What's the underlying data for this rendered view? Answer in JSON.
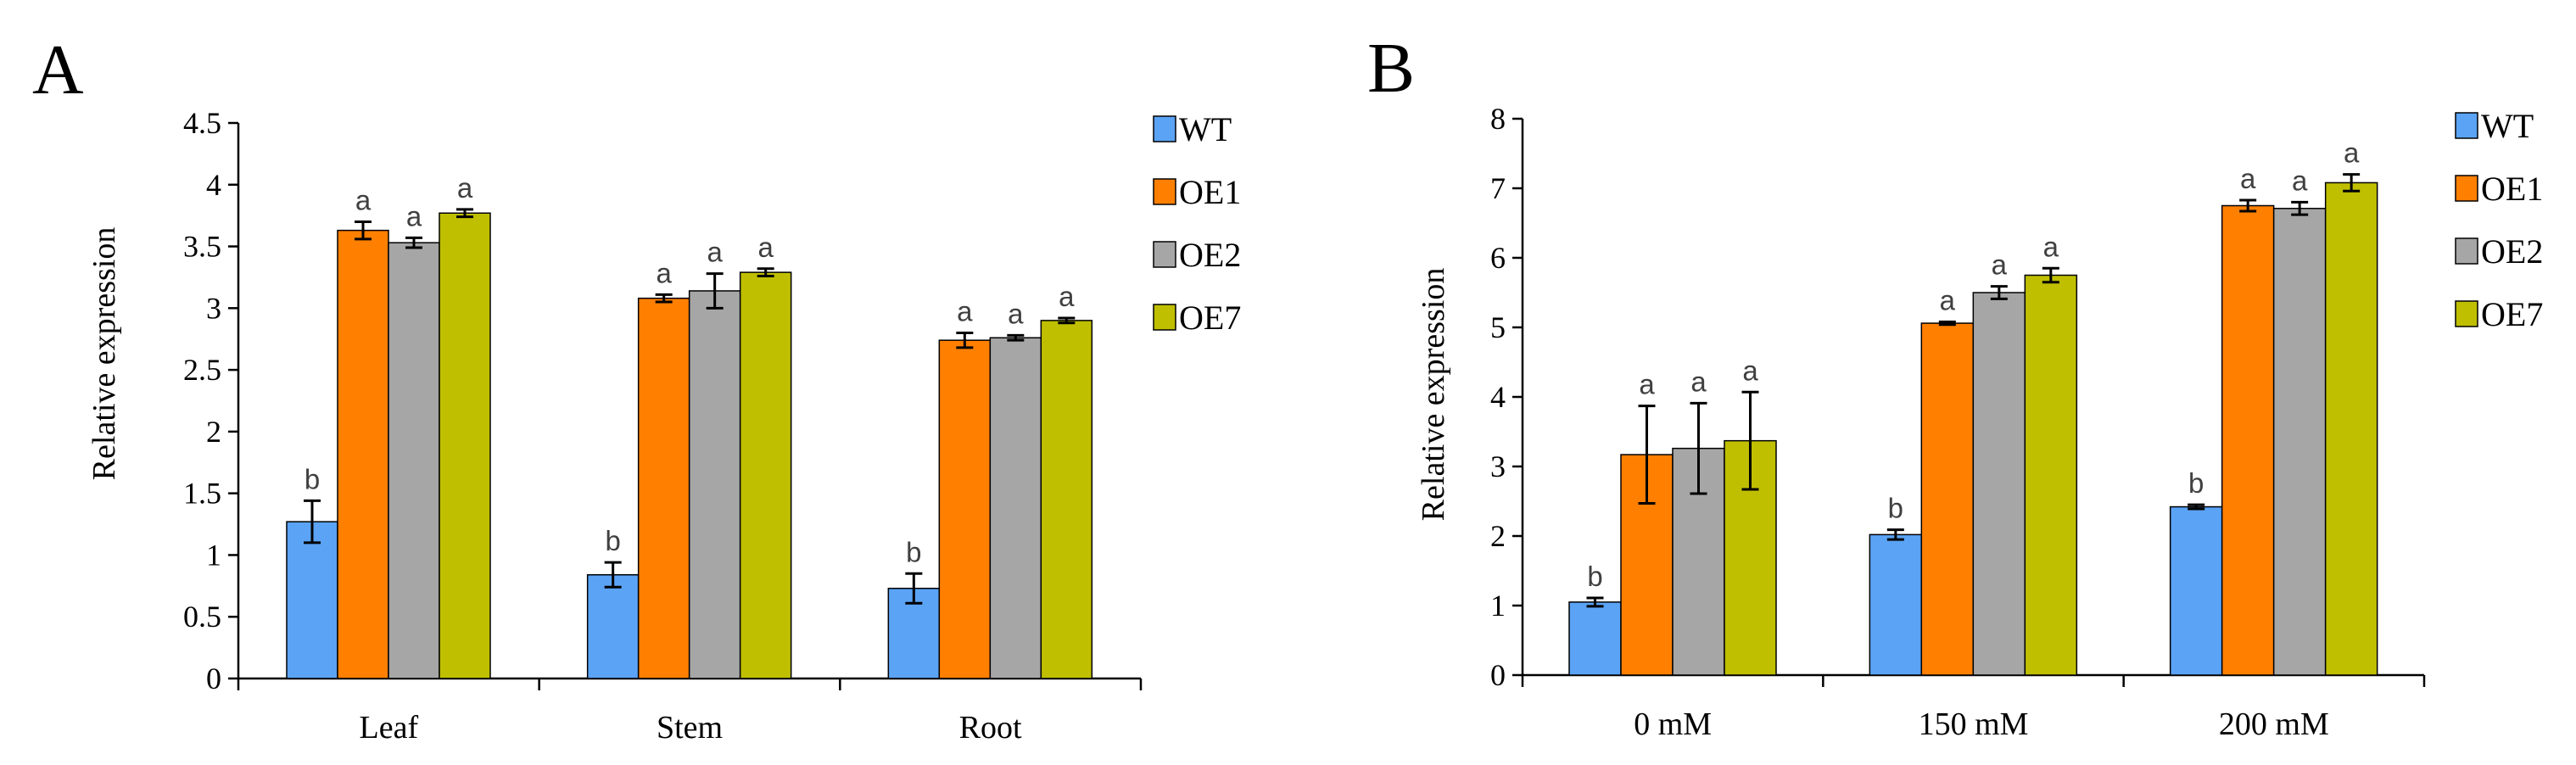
{
  "chart_data": [
    {
      "panel": "A",
      "type": "bar",
      "categories": [
        "Leaf",
        "Stem",
        "Root"
      ],
      "ylabel": "Relative expression",
      "ylim": [
        0,
        4.5
      ],
      "yticks": [
        "0",
        "0.5",
        "1",
        "1.5",
        "2",
        "2.5",
        "3",
        "3.5",
        "4",
        "4.5"
      ],
      "ytick_values": [
        0,
        0.5,
        1,
        1.5,
        2,
        2.5,
        3,
        3.5,
        4,
        4.5
      ],
      "legend_position": "right",
      "grid": false,
      "series": [
        {
          "name": "WT",
          "color": "#5BA3F5",
          "values": [
            1.27,
            0.84,
            0.73
          ],
          "errors": [
            0.17,
            0.1,
            0.12
          ],
          "labels": [
            "b",
            "b",
            "b"
          ]
        },
        {
          "name": "OE1",
          "color": "#FF7F00",
          "values": [
            3.63,
            3.08,
            2.74
          ],
          "errors": [
            0.07,
            0.03,
            0.06
          ],
          "labels": [
            "a",
            "a",
            "a"
          ]
        },
        {
          "name": "OE2",
          "color": "#A6A6A6",
          "values": [
            3.53,
            3.14,
            2.76
          ],
          "errors": [
            0.04,
            0.14,
            0.02
          ],
          "labels": [
            "a",
            "a",
            "a"
          ]
        },
        {
          "name": "OE7",
          "color": "#BFBF00",
          "values": [
            3.77,
            3.29,
            2.9
          ],
          "errors": [
            0.03,
            0.03,
            0.02
          ],
          "labels": [
            "a",
            "a",
            "a"
          ]
        }
      ]
    },
    {
      "panel": "B",
      "type": "bar",
      "categories": [
        "0 mM",
        "150 mM",
        "200 mM"
      ],
      "ylabel": "Relative  expression",
      "ylim": [
        0,
        8
      ],
      "yticks": [
        "0",
        "1",
        "2",
        "3",
        "4",
        "5",
        "6",
        "7",
        "8"
      ],
      "ytick_values": [
        0,
        1,
        2,
        3,
        4,
        5,
        6,
        7,
        8
      ],
      "legend_position": "right",
      "grid": false,
      "series": [
        {
          "name": "WT",
          "color": "#5BA3F5",
          "values": [
            1.05,
            2.02,
            2.42
          ],
          "errors": [
            0.06,
            0.07,
            0.03
          ],
          "labels": [
            "b",
            "b",
            "b"
          ]
        },
        {
          "name": "OE1",
          "color": "#FF7F00",
          "values": [
            3.17,
            5.06,
            6.75
          ],
          "errors": [
            0.7,
            0.02,
            0.08
          ],
          "labels": [
            "a",
            "a",
            "a"
          ]
        },
        {
          "name": "OE2",
          "color": "#A6A6A6",
          "values": [
            3.26,
            5.5,
            6.71
          ],
          "errors": [
            0.65,
            0.09,
            0.09
          ],
          "labels": [
            "a",
            "a",
            "a"
          ]
        },
        {
          "name": "OE7",
          "color": "#BFBF00",
          "values": [
            3.37,
            5.75,
            7.08
          ],
          "errors": [
            0.7,
            0.1,
            0.12
          ],
          "labels": [
            "a",
            "a",
            "a"
          ]
        }
      ]
    }
  ]
}
